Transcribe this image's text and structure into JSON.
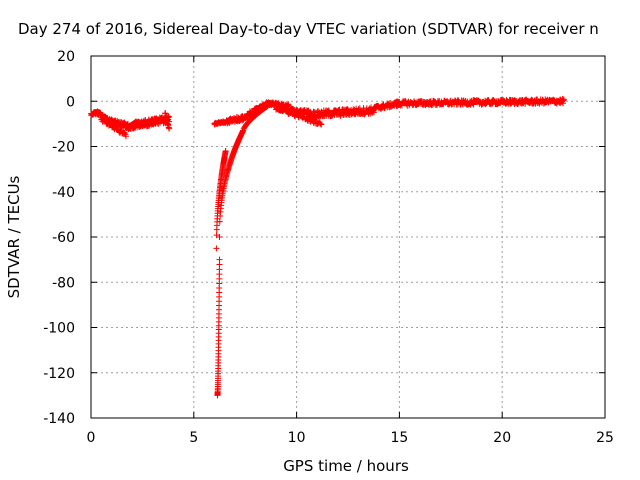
{
  "chart_data": {
    "type": "scatter",
    "title": "Day 274 of 2016, Sidereal Day-to-day VTEC variation (SDTVAR) for receiver n",
    "xlabel": "GPS time / hours",
    "ylabel": "SDTVAR / TECUs",
    "xlim": [
      0,
      25
    ],
    "ylim": [
      -140,
      20
    ],
    "xticks": [
      0,
      5,
      10,
      15,
      20,
      25
    ],
    "yticks": [
      -140,
      -120,
      -100,
      -80,
      -60,
      -40,
      -20,
      0,
      20
    ],
    "grid": true,
    "marker": "plus",
    "color": "#ff0000",
    "series": [
      {
        "segments": [
          {
            "x0": 0.0,
            "x1": 0.3,
            "y0": -6,
            "y1": -5,
            "spread": 1.5,
            "n": 20
          },
          {
            "x0": 0.3,
            "x1": 0.9,
            "y0": -5,
            "y1": -9,
            "spread": 2.0,
            "n": 45
          },
          {
            "x0": 0.5,
            "x1": 1.7,
            "y0": -8,
            "y1": -15,
            "spread": 1.5,
            "n": 40
          },
          {
            "x0": 0.9,
            "x1": 1.8,
            "y0": -9,
            "y1": -11,
            "spread": 2.5,
            "n": 60
          },
          {
            "x0": 1.8,
            "x1": 3.8,
            "y0": -11,
            "y1": -8,
            "spread": 3.0,
            "n": 150
          },
          {
            "x0": 3.6,
            "x1": 3.8,
            "y0": -5,
            "y1": -12,
            "spread": 1.0,
            "n": 12
          },
          {
            "x0": 6.0,
            "x1": 6.6,
            "y0": -10,
            "y1": -9,
            "spread": 1.0,
            "n": 30
          },
          {
            "x0": 6.6,
            "x1": 7.6,
            "y0": -9,
            "y1": -7,
            "spread": 2.0,
            "n": 60
          },
          {
            "x0": 7.6,
            "x1": 8.6,
            "y0": -6,
            "y1": -1,
            "spread": 2.0,
            "n": 70
          },
          {
            "x0": 8.6,
            "x1": 9.6,
            "y0": -1,
            "y1": -2,
            "spread": 1.5,
            "n": 70
          },
          {
            "x0": 9.6,
            "x1": 10.6,
            "y0": -4,
            "y1": -5,
            "spread": 2.0,
            "n": 60
          },
          {
            "x0": 9.0,
            "x1": 11.2,
            "y0": -3,
            "y1": -10,
            "spread": 1.5,
            "n": 60
          },
          {
            "x0": 10.6,
            "x1": 13.8,
            "y0": -6,
            "y1": -4,
            "spread": 3.0,
            "n": 160
          },
          {
            "x0": 13.8,
            "x1": 15.0,
            "y0": -3,
            "y1": -1,
            "spread": 2.0,
            "n": 60
          },
          {
            "x0": 14.8,
            "x1": 23.0,
            "y0": -1,
            "y1": 0,
            "spread": 2.0,
            "n": 380
          }
        ],
        "curves": [
          {
            "x0": 6.15,
            "x1": 6.25,
            "y0": -130,
            "y1": -70,
            "k": 1.6,
            "n": 45
          },
          {
            "x0": 6.1,
            "x1": 6.55,
            "y0": -65,
            "y1": -22,
            "k": 0.5,
            "n": 55
          },
          {
            "x0": 6.25,
            "x1": 7.4,
            "y0": -60,
            "y1": -13,
            "k": 0.45,
            "n": 75
          },
          {
            "x0": 7.4,
            "x1": 8.6,
            "y0": -13,
            "y1": -2,
            "k": 0.7,
            "n": 45
          }
        ]
      }
    ]
  }
}
